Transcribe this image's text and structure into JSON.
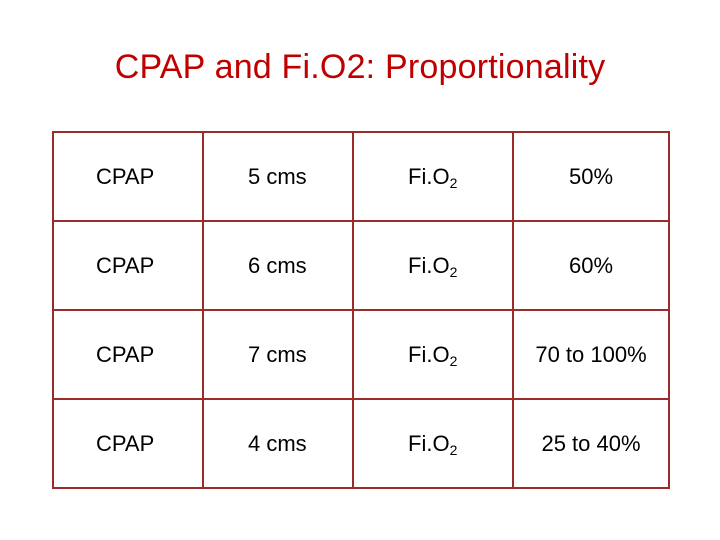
{
  "slide": {
    "title": "CPAP and Fi.O2: Proportionality"
  },
  "table": {
    "rows": [
      {
        "label": "CPAP",
        "value": "5 cms",
        "param": "Fi.O",
        "param_sub": "2",
        "percent": "50%"
      },
      {
        "label": "CPAP",
        "value": "6 cms",
        "param": "Fi.O",
        "param_sub": "2",
        "percent": "60%"
      },
      {
        "label": "CPAP",
        "value": "7 cms",
        "param": "Fi.O",
        "param_sub": "2",
        "percent": "70 to 100%"
      },
      {
        "label": "CPAP",
        "value": "4 cms",
        "param": "Fi.O",
        "param_sub": "2",
        "percent": "25 to 40%"
      }
    ]
  },
  "colors": {
    "title": "#c00000",
    "border": "#9b2c2c",
    "text": "#000000"
  }
}
